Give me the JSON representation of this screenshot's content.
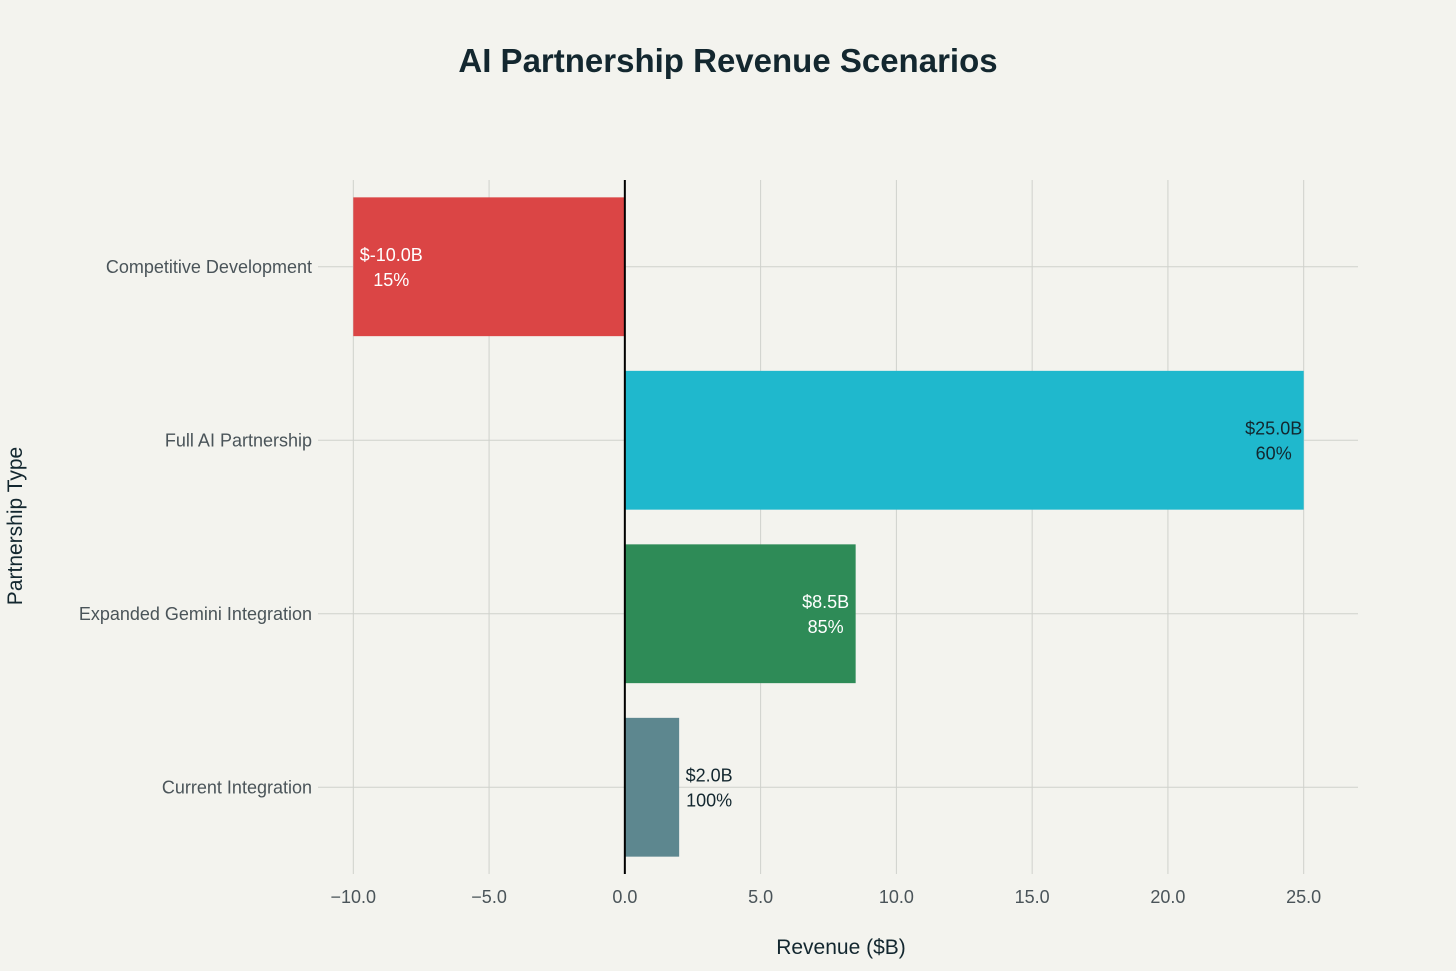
{
  "chart_data": {
    "type": "bar",
    "orientation": "horizontal",
    "title": "AI Partnership Revenue Scenarios",
    "xlabel": "Revenue ($B)",
    "ylabel": "Partnership Type",
    "xlim": [
      -11.3,
      27.0
    ],
    "xticks": [
      -10.0,
      -5.0,
      0.0,
      5.0,
      10.0,
      15.0,
      20.0,
      25.0
    ],
    "xtick_labels": [
      "−10.0",
      "−5.0",
      "0.0",
      "5.0",
      "10.0",
      "15.0",
      "20.0",
      "25.0"
    ],
    "grid": true,
    "categories": [
      "Competitive Development",
      "Full AI Partnership",
      "Expanded Gemini Integration",
      "Current Integration"
    ],
    "values": [
      -10.0,
      25.0,
      8.5,
      2.0
    ],
    "probabilities": [
      15,
      60,
      85,
      100
    ],
    "value_labels": [
      "$-10.0B",
      "$25.0B",
      "$8.5B",
      "$2.0B"
    ],
    "probability_labels": [
      "15%",
      "60%",
      "85%",
      "100%"
    ],
    "colors": [
      "#db4545",
      "#1fb8cd",
      "#2e8b57",
      "#5d878f"
    ],
    "label_colors": [
      "#ffffff",
      "#13272f",
      "#ffffff",
      "#13272f"
    ]
  }
}
